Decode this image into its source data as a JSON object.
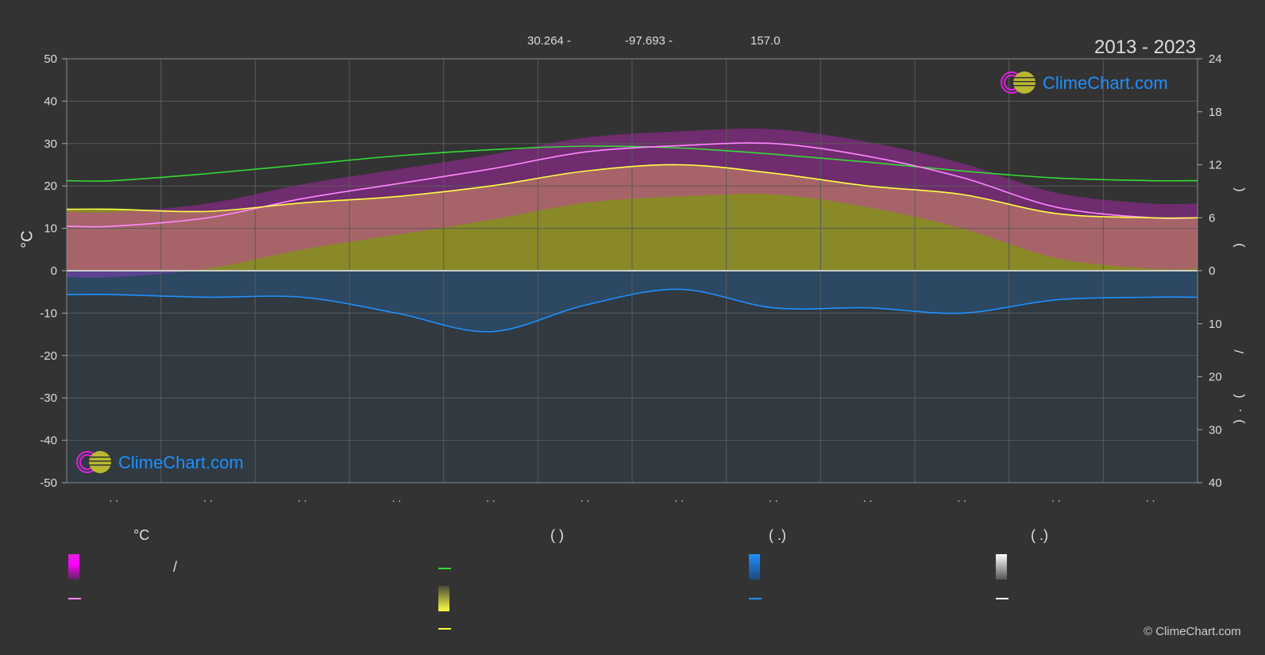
{
  "header": {
    "lat": "30.264 -",
    "lon": "-97.693 -",
    "elevation": "157.0",
    "year_range": "2013 - 2023"
  },
  "logo": {
    "text": "ClimeChart.com"
  },
  "copyright": "© ClimeChart.com",
  "axes": {
    "left_label": "°C",
    "left_ticks": [
      "50",
      "40",
      "30",
      "20",
      "10",
      "0",
      "-10",
      "-20",
      "-30",
      "-40",
      "-50"
    ],
    "right_top_ticks": [
      "24",
      "18",
      "12",
      "6",
      "0"
    ],
    "right_bottom_ticks": [
      "0",
      "10",
      "20",
      "30",
      "40"
    ],
    "right_label_top_1": "(",
    "right_label_top_2": ")",
    "right_label_mid": "/",
    "right_label_bot_1": "(",
    "right_label_bot_2": "·",
    "right_label_bot_3": ")",
    "month_labels": [
      ". .",
      ". .",
      ". .",
      ". .",
      ". .",
      ". .",
      ". .",
      ". .",
      ". .",
      ". .",
      ". .",
      ". ."
    ]
  },
  "legend": {
    "col1_title": "°C",
    "col1_slash": "/",
    "col2_title": "(          )",
    "col3_title": "(    .)",
    "col4_title": "(    .)"
  },
  "colors": {
    "background": "#333333",
    "grid": "#5a5a5a",
    "max_temp": "#ff88ff",
    "temp_band": "#e020e0",
    "mean_temp": "#ffff44",
    "daylight": "#33dd33",
    "sunshine": "#a7a726",
    "precip": "#1e90ff",
    "snow": "#ffffff",
    "logo_text": "#1e90ff"
  },
  "chart_data": {
    "type": "line",
    "x": [
      "Jan",
      "Feb",
      "Mar",
      "Apr",
      "May",
      "Jun",
      "Jul",
      "Aug",
      "Sep",
      "Oct",
      "Nov",
      "Dec"
    ],
    "ylim_left": [
      -50,
      50
    ],
    "ylim_right_top": [
      0,
      24
    ],
    "ylim_right_bottom": [
      0,
      40
    ],
    "series": [
      {
        "key": "max",
        "axis": "temp",
        "values": [
          10.5,
          12.5,
          17,
          20.5,
          24,
          28,
          29.5,
          30,
          27,
          22,
          15,
          12.5
        ]
      },
      {
        "key": "mean",
        "axis": "temp",
        "values": [
          14.5,
          14,
          16,
          17.5,
          20,
          23.5,
          25,
          23,
          20,
          18,
          13.5,
          12.5
        ]
      },
      {
        "key": "daylight",
        "axis": "hours",
        "values": [
          10.2,
          11,
          12,
          13,
          13.7,
          14.1,
          13.9,
          13.2,
          12.3,
          11.3,
          10.5,
          10.2
        ]
      },
      {
        "key": "precip",
        "axis": "precip",
        "values": [
          4.5,
          5,
          5,
          8,
          11.5,
          6.5,
          3.5,
          7,
          7,
          8,
          5.5,
          5
        ]
      }
    ]
  }
}
